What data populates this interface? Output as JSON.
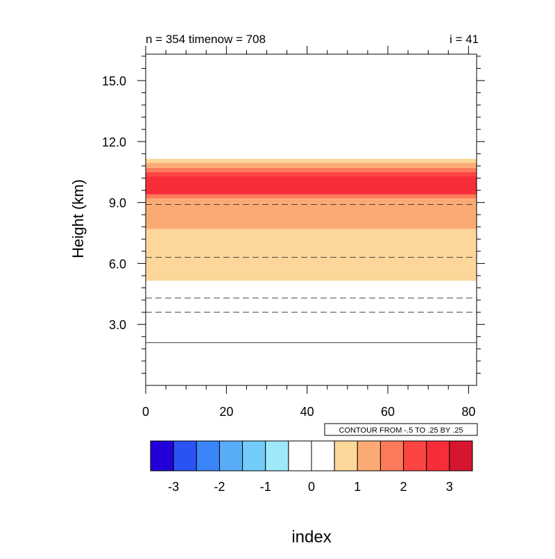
{
  "chart_data": {
    "type": "heatmap",
    "title_left": "n = 354 timenow = 708",
    "title_right": "i = 41",
    "xlabel": "index",
    "ylabel": "Height (km)",
    "xlim": [
      0,
      82
    ],
    "ylim": [
      0,
      16.3
    ],
    "x_ticks": [
      0,
      20,
      40,
      60,
      80
    ],
    "x_tick_labels": [
      "0",
      "20",
      "40",
      "60",
      "80"
    ],
    "y_ticks": [
      3,
      6,
      9,
      12,
      15
    ],
    "y_tick_labels": [
      "3.0",
      "6.0",
      "9.0",
      "12.0",
      "15.0"
    ],
    "info_label": "CONTOUR FROM -.5 TO .25 BY .25",
    "fill_bands": [
      {
        "y0": 5.15,
        "y1": 7.7,
        "color": "#fdd79a"
      },
      {
        "y0": 7.7,
        "y1": 9.2,
        "color": "#fcaa74"
      },
      {
        "y0": 9.2,
        "y1": 9.4,
        "color": "#fc7a59"
      },
      {
        "y0": 9.4,
        "y1": 10.3,
        "color": "#f82d3a"
      },
      {
        "y0": 10.3,
        "y1": 10.5,
        "color": "#fc4543"
      },
      {
        "y0": 10.5,
        "y1": 10.7,
        "color": "#fc7a59"
      },
      {
        "y0": 10.7,
        "y1": 10.95,
        "color": "#fcaa74"
      },
      {
        "y0": 10.95,
        "y1": 11.15,
        "color": "#fdd79a"
      }
    ],
    "contour_lines": [
      {
        "y": 2.1,
        "style": "solid"
      },
      {
        "y": 3.6,
        "style": "dashed"
      },
      {
        "y": 4.3,
        "style": "dashed"
      },
      {
        "y": 6.3,
        "style": "dashed"
      },
      {
        "y": 8.9,
        "style": "dashed"
      }
    ],
    "colorbar": {
      "colors": [
        "#2200d8",
        "#2a53f6",
        "#3a86f8",
        "#58acf8",
        "#72cbf8",
        "#9ee8fb",
        "#ffffff",
        "#ffffff",
        "#fdd79a",
        "#fcaa74",
        "#fc7a59",
        "#fc4543",
        "#f82d3a",
        "#d6152e"
      ],
      "tick_labels": [
        "-3",
        "-2",
        "-1",
        "0",
        "1",
        "2",
        "3"
      ]
    }
  }
}
